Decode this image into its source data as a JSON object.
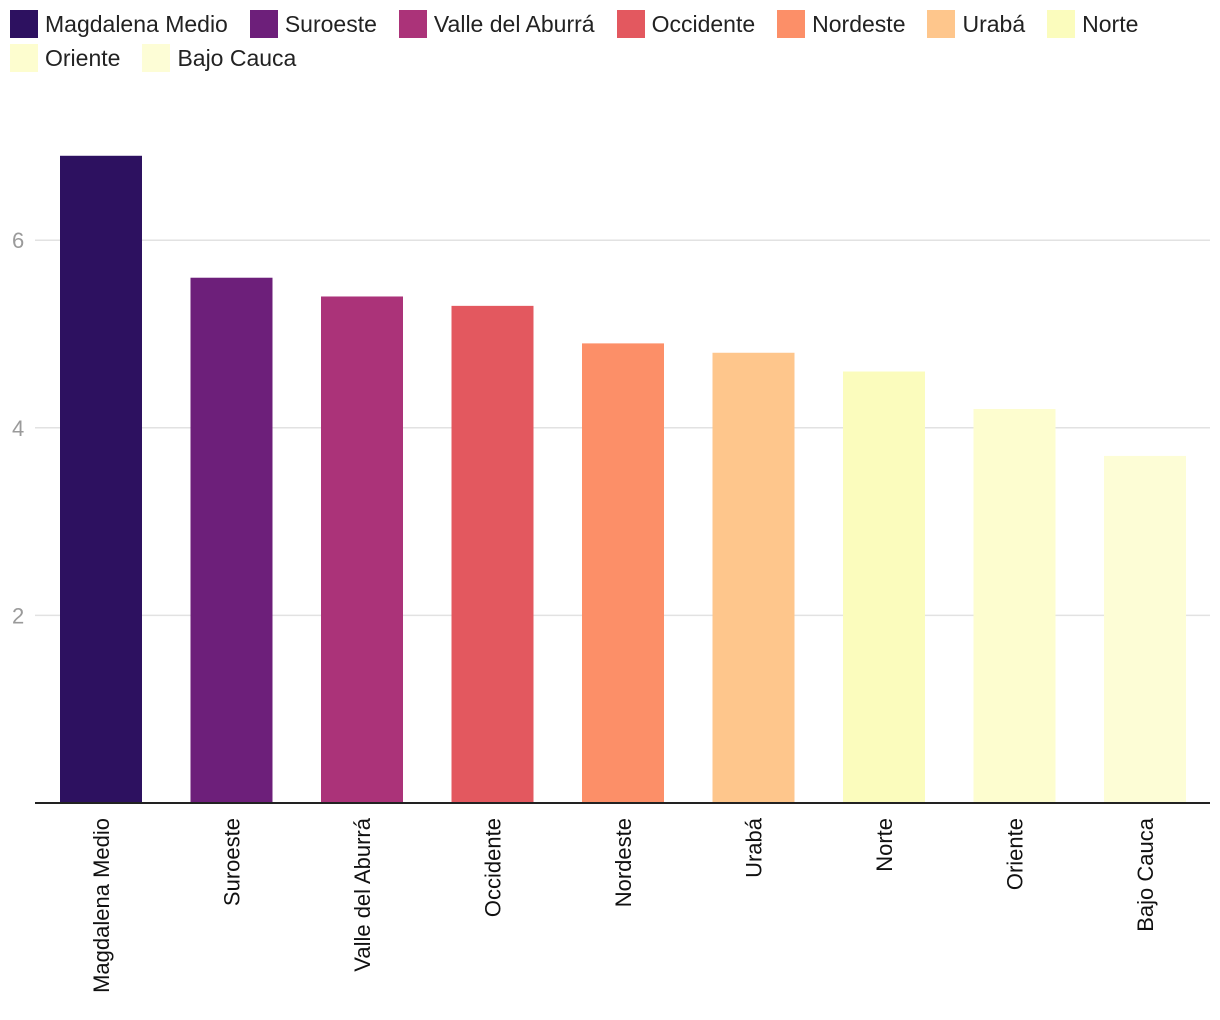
{
  "chart_data": {
    "type": "bar",
    "title": "",
    "xlabel": "",
    "ylabel": "",
    "ylim": [
      0,
      7.2
    ],
    "yticks": [
      2,
      4,
      6
    ],
    "grid": true,
    "legend_position": "top",
    "categories": [
      "Magdalena Medio",
      "Suroeste",
      "Valle del Aburrá",
      "Occidente",
      "Nordeste",
      "Urabá",
      "Norte",
      "Oriente",
      "Bajo Cauca"
    ],
    "values": [
      6.9,
      5.6,
      5.4,
      5.3,
      4.9,
      4.8,
      4.6,
      4.2,
      3.7
    ],
    "colors": [
      "#2d1160",
      "#6d1f7a",
      "#ab3379",
      "#e3585f",
      "#fc8f68",
      "#fec68c",
      "#fbfcbd",
      "#fdfdcf",
      "#fdfdd6"
    ]
  }
}
